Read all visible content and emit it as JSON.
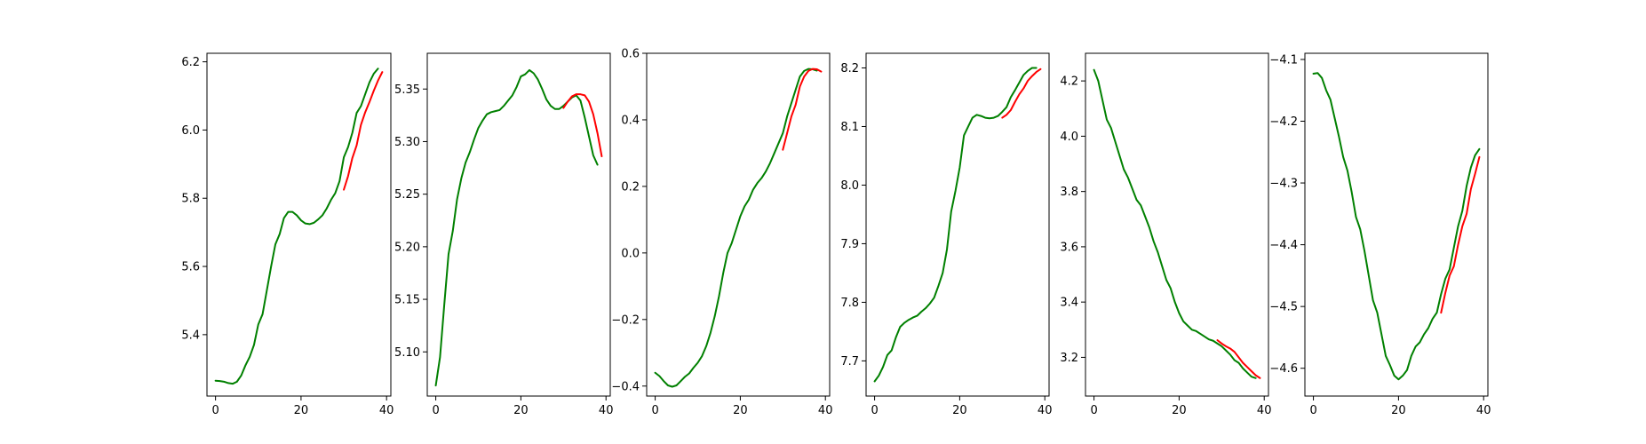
{
  "colors": {
    "actual": "#008000",
    "predicted": "#ff0000",
    "axes": "#000000",
    "background": "#ffffff"
  },
  "chart_data": [
    {
      "type": "line",
      "xlim": [
        -2,
        41
      ],
      "ylim": [
        5.22,
        6.225
      ],
      "x_ticks": [
        0,
        20,
        40
      ],
      "x_tick_labels": [
        "0",
        "20",
        "40"
      ],
      "y_ticks": [
        5.4,
        5.6,
        5.8,
        6.0,
        6.2
      ],
      "y_tick_labels": [
        "5.4",
        "5.6",
        "5.8",
        "6.0",
        "6.2"
      ],
      "series": [
        {
          "role": "actual",
          "x_start": 0,
          "values": [
            5.265,
            5.264,
            5.262,
            5.258,
            5.256,
            5.262,
            5.28,
            5.31,
            5.335,
            5.37,
            5.43,
            5.46,
            5.53,
            5.6,
            5.665,
            5.695,
            5.742,
            5.76,
            5.76,
            5.75,
            5.735,
            5.726,
            5.724,
            5.728,
            5.738,
            5.75,
            5.77,
            5.795,
            5.815,
            5.85,
            5.92,
            5.95,
            5.992,
            6.05,
            6.07,
            6.105,
            6.14,
            6.165,
            6.18
          ]
        },
        {
          "role": "predicted",
          "x_start": 30,
          "values": [
            5.825,
            5.865,
            5.918,
            5.955,
            6.015,
            6.052,
            6.082,
            6.115,
            6.145,
            6.17
          ]
        }
      ]
    },
    {
      "type": "line",
      "xlim": [
        -2,
        41
      ],
      "ylim": [
        5.058,
        5.384
      ],
      "x_ticks": [
        0,
        20,
        40
      ],
      "x_tick_labels": [
        "0",
        "20",
        "40"
      ],
      "y_ticks": [
        5.1,
        5.15,
        5.2,
        5.25,
        5.3,
        5.35
      ],
      "y_tick_labels": [
        "5.10",
        "5.15",
        "5.20",
        "5.25",
        "5.30",
        "5.35"
      ],
      "series": [
        {
          "role": "actual",
          "x_start": 0,
          "values": [
            5.068,
            5.095,
            5.145,
            5.193,
            5.215,
            5.245,
            5.265,
            5.28,
            5.29,
            5.302,
            5.313,
            5.32,
            5.326,
            5.328,
            5.329,
            5.33,
            5.334,
            5.339,
            5.344,
            5.352,
            5.362,
            5.364,
            5.368,
            5.365,
            5.359,
            5.35,
            5.34,
            5.334,
            5.331,
            5.331,
            5.334,
            5.338,
            5.342,
            5.344,
            5.339,
            5.323,
            5.305,
            5.287,
            5.278
          ]
        },
        {
          "role": "predicted",
          "x_start": 30,
          "values": [
            5.332,
            5.338,
            5.343,
            5.345,
            5.345,
            5.344,
            5.338,
            5.326,
            5.308,
            5.286
          ]
        }
      ]
    },
    {
      "type": "line",
      "xlim": [
        -2,
        41
      ],
      "ylim": [
        -0.43,
        0.6
      ],
      "x_ticks": [
        0,
        20,
        40
      ],
      "x_tick_labels": [
        "0",
        "20",
        "40"
      ],
      "y_ticks": [
        -0.4,
        -0.2,
        0.0,
        0.2,
        0.4,
        0.6
      ],
      "y_tick_labels": [
        "−0.4",
        "−0.2",
        "0.0",
        "0.2",
        "0.4",
        "0.6"
      ],
      "series": [
        {
          "role": "actual",
          "x_start": 0,
          "values": [
            -0.36,
            -0.37,
            -0.385,
            -0.398,
            -0.402,
            -0.398,
            -0.385,
            -0.372,
            -0.362,
            -0.345,
            -0.33,
            -0.31,
            -0.28,
            -0.24,
            -0.19,
            -0.13,
            -0.06,
            0.0,
            0.03,
            0.07,
            0.11,
            0.14,
            0.16,
            0.19,
            0.21,
            0.225,
            0.245,
            0.27,
            0.3,
            0.33,
            0.36,
            0.41,
            0.45,
            0.49,
            0.53,
            0.547,
            0.553,
            0.552,
            0.548
          ]
        },
        {
          "role": "predicted",
          "x_start": 30,
          "values": [
            0.31,
            0.36,
            0.41,
            0.445,
            0.5,
            0.53,
            0.547,
            0.553,
            0.552,
            0.545
          ]
        }
      ]
    },
    {
      "type": "line",
      "xlim": [
        -2,
        41
      ],
      "ylim": [
        7.64,
        8.225
      ],
      "x_ticks": [
        0,
        20,
        40
      ],
      "x_tick_labels": [
        "0",
        "20",
        "40"
      ],
      "y_ticks": [
        7.7,
        7.8,
        7.9,
        8.0,
        8.1,
        8.2
      ],
      "y_tick_labels": [
        "7.7",
        "7.8",
        "7.9",
        "8.0",
        "8.1",
        "8.2"
      ],
      "series": [
        {
          "role": "actual",
          "x_start": 0,
          "values": [
            7.665,
            7.675,
            7.69,
            7.71,
            7.718,
            7.74,
            7.758,
            7.765,
            7.77,
            7.774,
            7.777,
            7.784,
            7.79,
            7.798,
            7.808,
            7.828,
            7.85,
            7.89,
            7.955,
            7.99,
            8.03,
            8.085,
            8.1,
            8.115,
            8.12,
            8.118,
            8.115,
            8.114,
            8.115,
            8.118,
            8.125,
            8.133,
            8.15,
            8.162,
            8.175,
            8.188,
            8.195,
            8.2,
            8.2
          ]
        },
        {
          "role": "predicted",
          "x_start": 30,
          "values": [
            8.115,
            8.12,
            8.128,
            8.142,
            8.155,
            8.165,
            8.178,
            8.186,
            8.193,
            8.198
          ]
        }
      ]
    },
    {
      "type": "line",
      "xlim": [
        -2,
        41
      ],
      "ylim": [
        3.06,
        4.3
      ],
      "x_ticks": [
        0,
        20,
        40
      ],
      "x_tick_labels": [
        "0",
        "20",
        "40"
      ],
      "y_ticks": [
        3.2,
        3.4,
        3.6,
        3.8,
        4.0,
        4.2
      ],
      "y_tick_labels": [
        "3.2",
        "3.4",
        "3.6",
        "3.8",
        "4.0",
        "4.2"
      ],
      "series": [
        {
          "role": "actual",
          "x_start": 0,
          "values": [
            4.24,
            4.2,
            4.13,
            4.06,
            4.03,
            3.98,
            3.93,
            3.88,
            3.85,
            3.81,
            3.77,
            3.75,
            3.71,
            3.67,
            3.62,
            3.58,
            3.53,
            3.48,
            3.45,
            3.4,
            3.36,
            3.33,
            3.315,
            3.3,
            3.295,
            3.285,
            3.275,
            3.265,
            3.26,
            3.25,
            3.24,
            3.225,
            3.21,
            3.19,
            3.18,
            3.16,
            3.145,
            3.13,
            3.125
          ]
        },
        {
          "role": "predicted",
          "x_start": 29,
          "values": [
            3.262,
            3.25,
            3.24,
            3.232,
            3.22,
            3.2,
            3.18,
            3.165,
            3.15,
            3.135,
            3.125
          ]
        }
      ]
    },
    {
      "type": "line",
      "xlim": [
        -2,
        41
      ],
      "ylim": [
        -4.645,
        -4.09
      ],
      "x_ticks": [
        0,
        20,
        40
      ],
      "x_tick_labels": [
        "0",
        "20",
        "40"
      ],
      "y_ticks": [
        -4.6,
        -4.5,
        -4.4,
        -4.3,
        -4.2,
        -4.1
      ],
      "y_tick_labels": [
        "−4.6",
        "−4.5",
        "−4.4",
        "−4.3",
        "−4.2",
        "−4.1"
      ],
      "series": [
        {
          "role": "actual",
          "x_start": 0,
          "values": [
            -4.123,
            -4.122,
            -4.13,
            -4.15,
            -4.165,
            -4.195,
            -4.225,
            -4.258,
            -4.28,
            -4.315,
            -4.355,
            -4.375,
            -4.41,
            -4.45,
            -4.49,
            -4.51,
            -4.545,
            -4.58,
            -4.595,
            -4.612,
            -4.618,
            -4.612,
            -4.603,
            -4.58,
            -4.565,
            -4.558,
            -4.545,
            -4.535,
            -4.52,
            -4.51,
            -4.48,
            -4.455,
            -4.44,
            -4.405,
            -4.37,
            -4.345,
            -4.305,
            -4.275,
            -4.255,
            -4.245
          ]
        },
        {
          "role": "predicted",
          "x_start": 30,
          "values": [
            -4.51,
            -4.478,
            -4.45,
            -4.435,
            -4.4,
            -4.37,
            -4.35,
            -4.31,
            -4.285,
            -4.258
          ]
        }
      ]
    }
  ]
}
